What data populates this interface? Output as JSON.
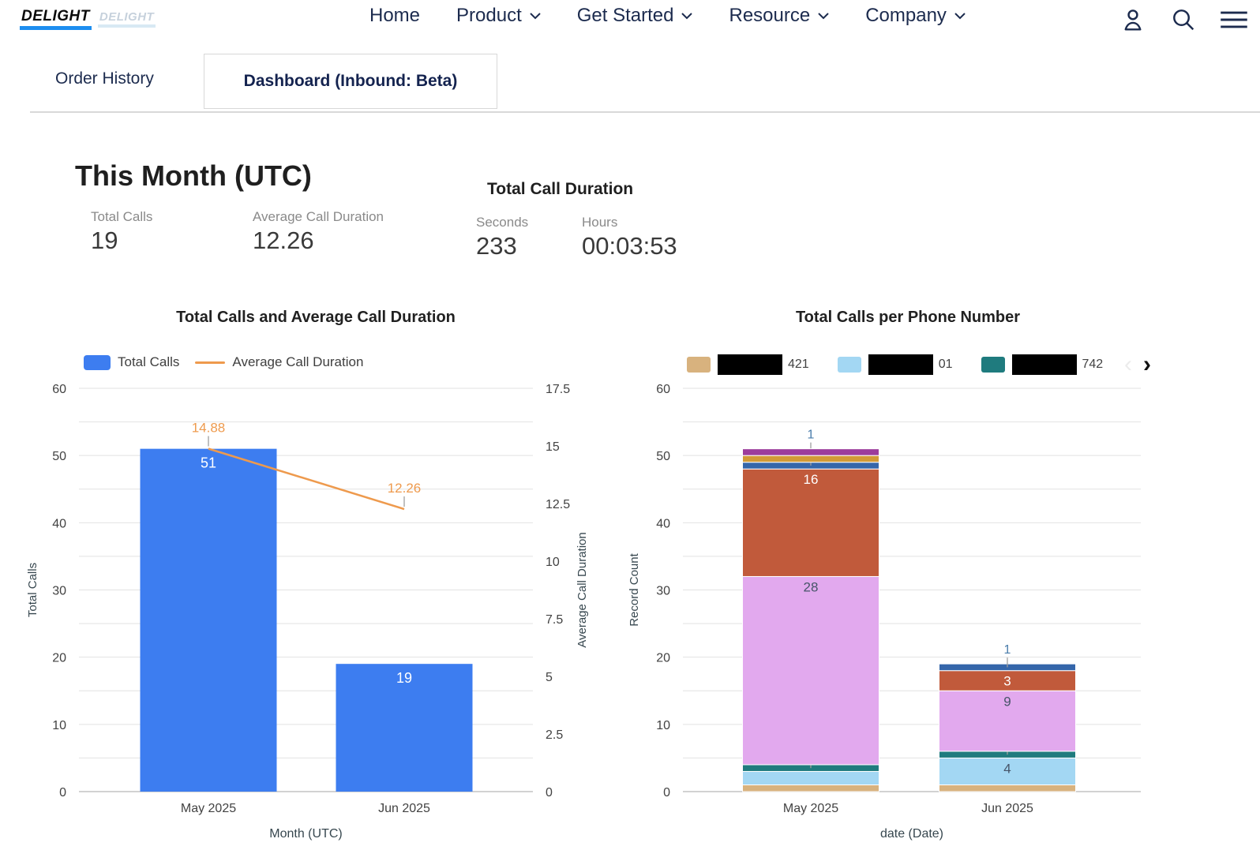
{
  "nav": {
    "logo_primary": "DELIGHT",
    "logo_ghost": "DELIGHT",
    "items": [
      {
        "label": "Home",
        "has_dropdown": false
      },
      {
        "label": "Product",
        "has_dropdown": true
      },
      {
        "label": "Get Started",
        "has_dropdown": true
      },
      {
        "label": "Resource",
        "has_dropdown": true
      },
      {
        "label": "Company",
        "has_dropdown": true
      }
    ]
  },
  "tabs": [
    {
      "label": "Order History",
      "active": false
    },
    {
      "label": "Dashboard (Inbound: Beta)",
      "active": true
    }
  ],
  "summary": {
    "title": "This Month (UTC)",
    "total_calls_label": "Total Calls",
    "total_calls_value": "19",
    "avg_duration_label": "Average Call Duration",
    "avg_duration_value": "12.26",
    "duration_title": "Total Call Duration",
    "seconds_label": "Seconds",
    "seconds_value": "233",
    "hours_label": "Hours",
    "hours_value": "00:03:53"
  },
  "legend_nav": {
    "prev": "‹",
    "next": "›"
  },
  "chart_data": [
    {
      "type": "bar",
      "subtype": "bar+line-dual-axis",
      "title": "Total Calls and Average Call Duration",
      "categories": [
        "May 2025",
        "Jun 2025"
      ],
      "series": [
        {
          "name": "Total Calls",
          "kind": "bar",
          "axis": "left",
          "color": "#3d7df0",
          "values": [
            51,
            19
          ],
          "label_color": "#ffffff"
        },
        {
          "name": "Average Call Duration",
          "kind": "line",
          "axis": "right",
          "color": "#ee9a4d",
          "values": [
            14.88,
            12.26
          ],
          "labels": [
            "14.88",
            "12.26"
          ],
          "label_color": "#ee9a4d"
        }
      ],
      "xlabel": "Month (UTC)",
      "ylabel_left": "Total Calls",
      "ylabel_right": "Average Call Duration",
      "ylim_left": [
        0,
        60
      ],
      "ylim_right": [
        0,
        17.5
      ],
      "yticks_left": [
        0,
        10,
        20,
        30,
        40,
        50,
        60
      ],
      "yticks_right": [
        0,
        2.5,
        5,
        7.5,
        10,
        12.5,
        15,
        17.5
      ],
      "grid_step": 5,
      "grid": true,
      "legend_position": "top-left"
    },
    {
      "type": "bar",
      "subtype": "stacked-bar",
      "title": "Total Calls per Phone Number",
      "categories": [
        "May 2025",
        "Jun 2025"
      ],
      "series": [
        {
          "name_suffix": "421",
          "redacted": true,
          "color": "#d8b27e",
          "values": [
            1,
            1
          ],
          "labels": [
            null,
            null
          ],
          "label_color": "#475569"
        },
        {
          "name_suffix": "01",
          "redacted": true,
          "color": "#a3d7f3",
          "values": [
            2,
            4
          ],
          "labels": [
            null,
            {
              "text": "4",
              "mode": "inside"
            }
          ],
          "label_color": "#475569"
        },
        {
          "name_suffix": "742",
          "redacted": true,
          "color": "#1f7b7e",
          "values": [
            1,
            1
          ],
          "labels": [
            {
              "text": "1",
              "mode": "leader"
            },
            {
              "text": "1",
              "mode": "leader"
            }
          ],
          "label_color": "#4a7dab"
        },
        {
          "name_suffix": null,
          "redacted": true,
          "color": "#e2a9ee",
          "values": [
            28,
            9
          ],
          "labels": [
            {
              "text": "28",
              "mode": "inside"
            },
            {
              "text": "9",
              "mode": "inside"
            }
          ],
          "label_color": "#475569"
        },
        {
          "name_suffix": null,
          "redacted": true,
          "color": "#c15a3b",
          "values": [
            16,
            3
          ],
          "labels": [
            {
              "text": "16",
              "mode": "inside"
            },
            {
              "text": "3",
              "mode": "inside"
            }
          ],
          "label_color": "#ffffff"
        },
        {
          "name_suffix": null,
          "redacted": true,
          "color": "#3566aa",
          "values": [
            1,
            1
          ],
          "labels": [
            {
              "text": "1",
              "mode": "above"
            },
            {
              "text": "1",
              "mode": "above"
            }
          ],
          "label_color": "#4a7dab"
        },
        {
          "name_suffix": null,
          "redacted": true,
          "color": "#d29a36",
          "values": [
            1,
            0
          ],
          "labels": [
            null,
            null
          ],
          "label_color": "#475569"
        },
        {
          "name_suffix": null,
          "redacted": true,
          "color": "#9c3c9b",
          "values": [
            1,
            0
          ],
          "labels": [
            null,
            null
          ],
          "label_color": "#475569"
        }
      ],
      "legend": [
        {
          "color": "#d8b27e",
          "suffix": "421"
        },
        {
          "color": "#a3d7f3",
          "suffix": "01"
        },
        {
          "color": "#1f7b7e",
          "suffix": "742"
        }
      ],
      "xlabel": "date (Date)",
      "ylabel_left": "Record Count",
      "ylim_left": [
        0,
        60
      ],
      "yticks_left": [
        0,
        10,
        20,
        30,
        40,
        50,
        60
      ],
      "grid_step": 5,
      "grid": true,
      "legend_position": "top",
      "legend_paginated": true
    }
  ]
}
